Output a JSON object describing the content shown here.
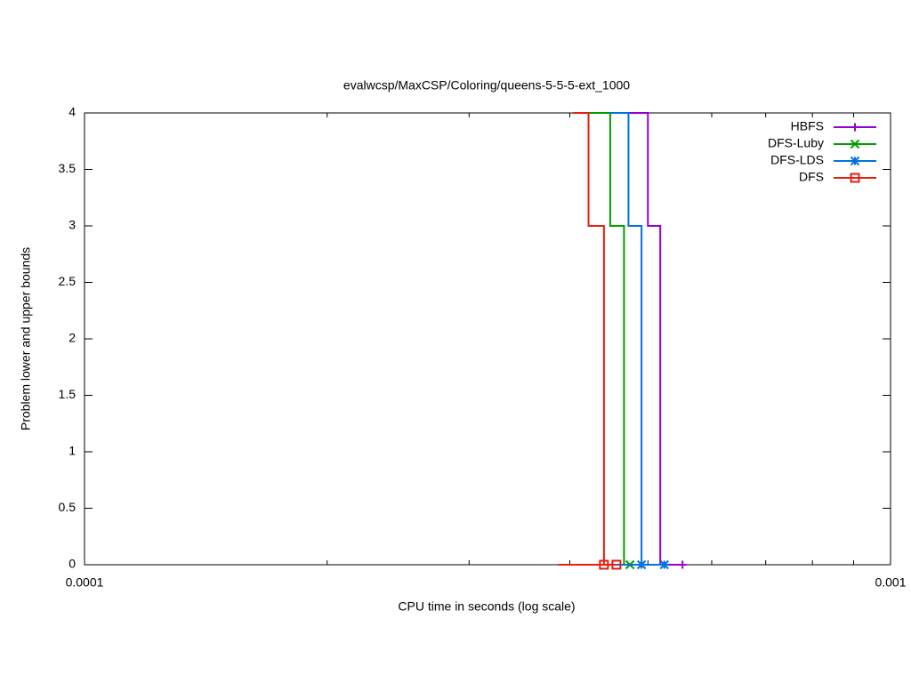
{
  "chart_data": {
    "type": "step",
    "title": "evalwcsp/MaxCSP/Coloring/queens-5-5-5-ext_1000",
    "xlabel": "CPU time in seconds (log scale)",
    "ylabel": "Problem lower and upper bounds",
    "xscale": "log",
    "xlim": [
      0.0001,
      0.001
    ],
    "xticks": [
      0.0001,
      0.001
    ],
    "xminorticks": [
      0.0002,
      0.0003,
      0.0004,
      0.0005,
      0.0006,
      0.0007,
      0.0008,
      0.0009
    ],
    "ylim": [
      0,
      4
    ],
    "yticks": [
      0,
      0.5,
      1,
      1.5,
      2,
      2.5,
      3,
      3.5,
      4
    ],
    "legend": "top-right",
    "series": [
      {
        "name": "HBFS",
        "color": "#9400d3",
        "point": "plus",
        "x": [
          0.000473,
          0.0005,
          0.000518
        ],
        "values": [
          4,
          3,
          0
        ],
        "lower_x": [
          0.000387,
          0.000552
        ],
        "lower_values": [
          0,
          0
        ]
      },
      {
        "name": "DFS-Luby",
        "color": "#009e00",
        "point": "cross",
        "x": [
          0.000422,
          0.000449,
          0.000467
        ],
        "values": [
          4,
          3,
          0
        ],
        "lower_x": [
          0.000387,
          0.000475
        ],
        "lower_values": [
          0,
          0
        ]
      },
      {
        "name": "DFS-LDS",
        "color": "#0072e0",
        "point": "star",
        "x": [
          0.000449,
          0.000473,
          0.000491
        ],
        "values": [
          4,
          3,
          0
        ],
        "lower_x": [
          0.000387,
          0.000491,
          0.000524
        ],
        "lower_values": [
          0,
          0,
          0
        ]
      },
      {
        "name": "DFS",
        "color": "#e51e10",
        "point": "box",
        "x": [
          0.000404,
          0.000422,
          0.000441
        ],
        "values": [
          4,
          3,
          0
        ],
        "lower_x": [
          0.000387,
          0.000441,
          0.000457
        ],
        "lower_values": [
          0,
          0,
          0
        ]
      }
    ]
  }
}
